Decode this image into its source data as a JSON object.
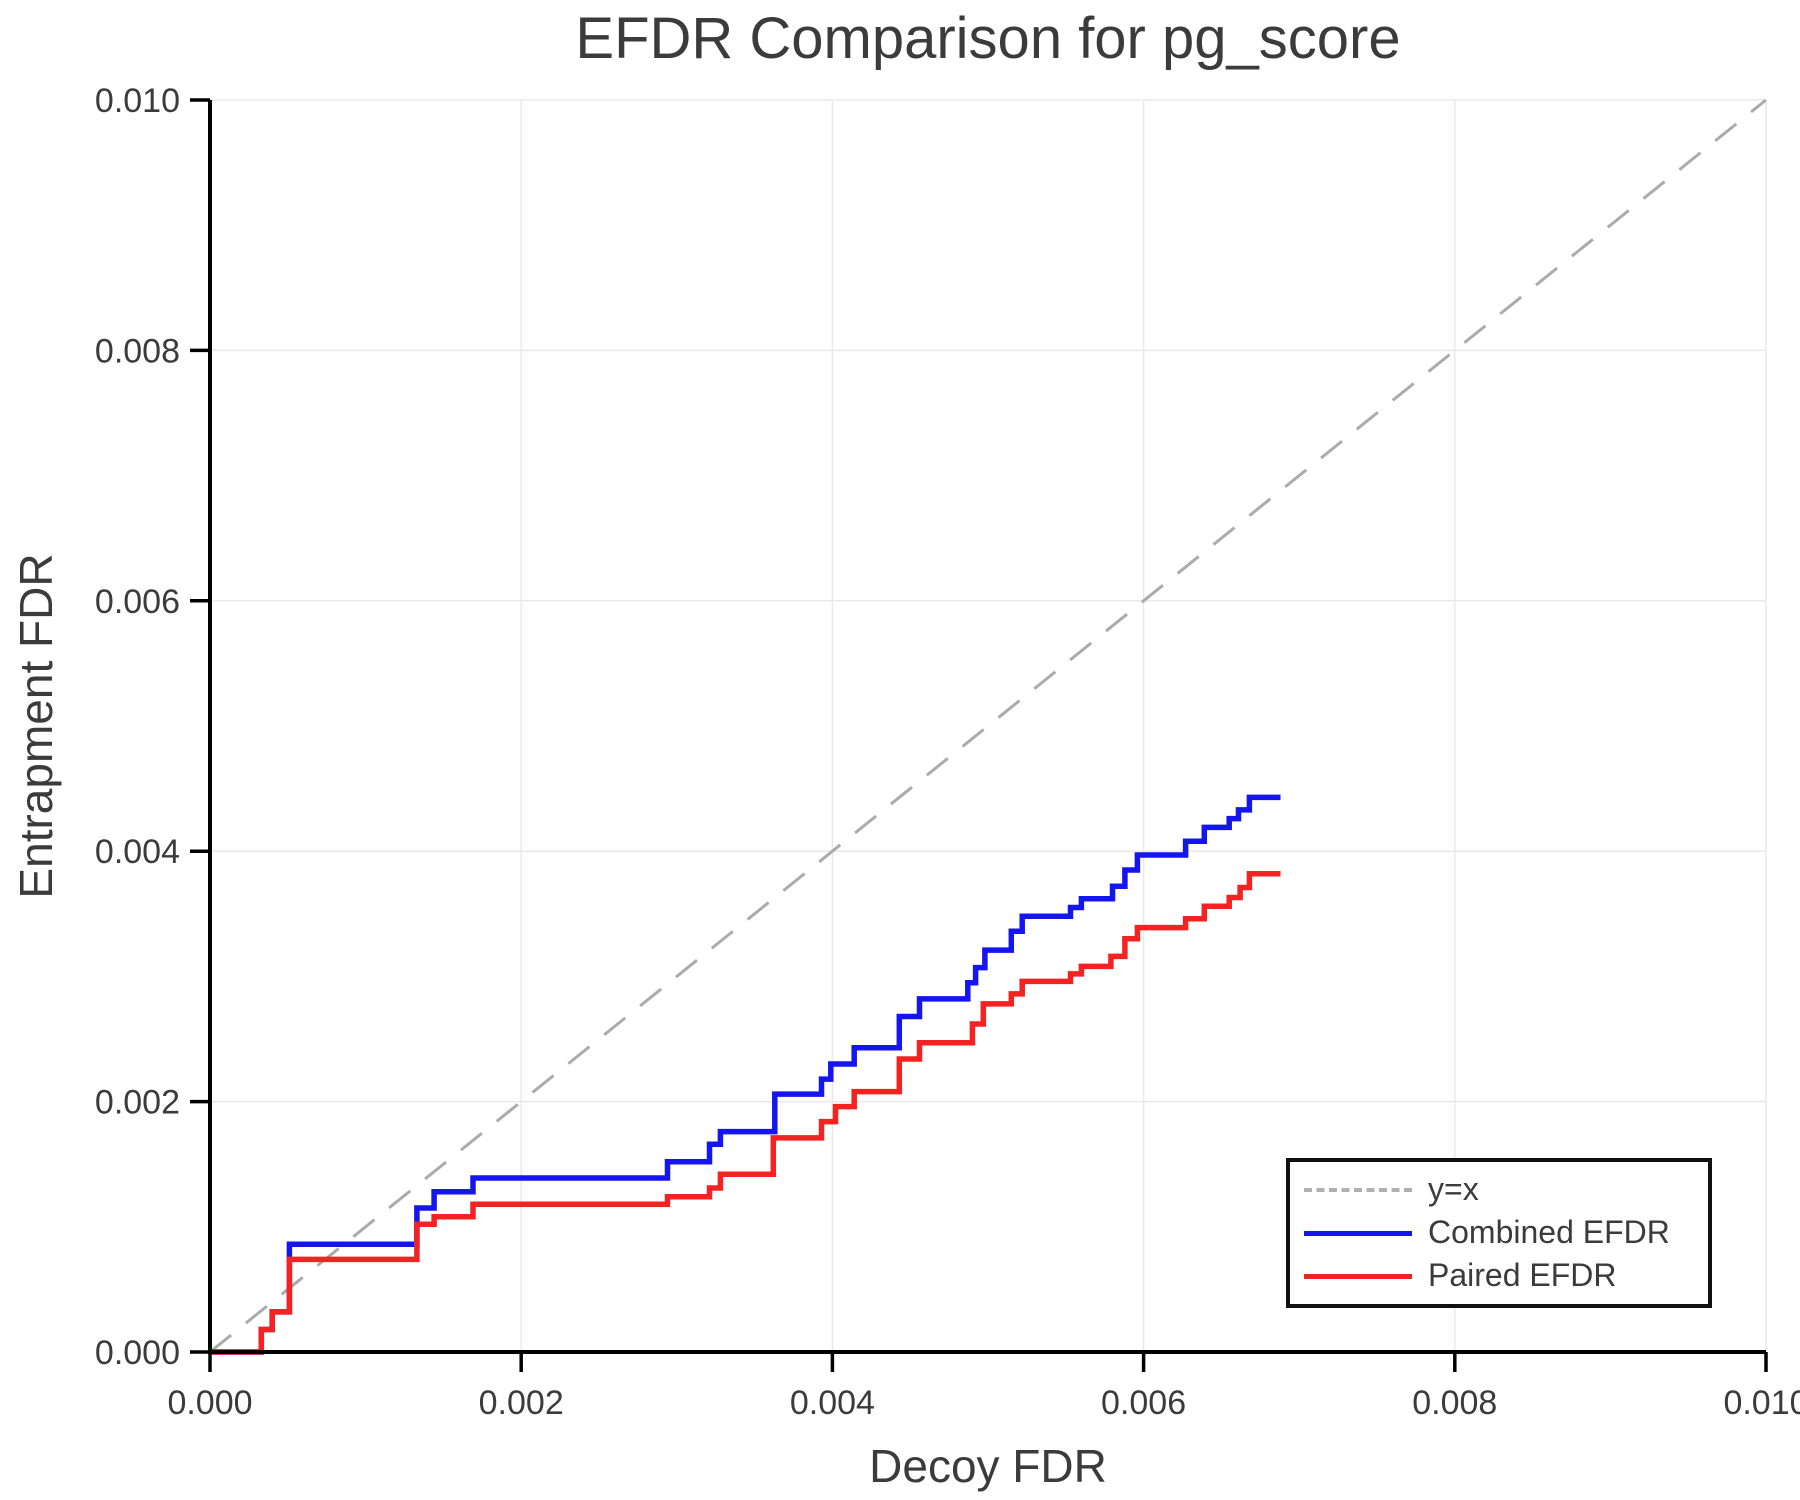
{
  "title": "EFDR Comparison for pg_score",
  "axes": {
    "x": {
      "label": "Decoy FDR",
      "ticks": [
        0.0,
        0.002,
        0.004,
        0.006,
        0.008,
        0.01
      ],
      "tick_labels": [
        "0.000",
        "0.002",
        "0.004",
        "0.006",
        "0.008",
        "0.010"
      ]
    },
    "y": {
      "label": "Entrapment FDR",
      "ticks": [
        0.0,
        0.002,
        0.004,
        0.006,
        0.008,
        0.01
      ],
      "tick_labels": [
        "0.000",
        "0.002",
        "0.004",
        "0.006",
        "0.008",
        "0.010"
      ]
    }
  },
  "legend": {
    "items": [
      {
        "label": "y=x",
        "style": "dashed",
        "color": "#b0b0b0"
      },
      {
        "label": "Combined EFDR",
        "style": "solid",
        "color": "#1515f0"
      },
      {
        "label": "Paired EFDR",
        "style": "solid",
        "color": "#f52222"
      }
    ]
  },
  "style": {
    "grid_color": "#e9e9e9",
    "spine_color": "#000000",
    "text_color": "#3b3b3b",
    "identity_color": "#ababab",
    "combined_color": "#1515f0",
    "paired_color": "#f52222"
  },
  "chart_data": {
    "type": "line",
    "title": "EFDR Comparison for pg_score",
    "xlabel": "Decoy FDR",
    "ylabel": "Entrapment FDR",
    "xlim": [
      0.0,
      0.01
    ],
    "ylim": [
      0.0,
      0.01
    ],
    "grid": true,
    "legend_position": "lower right",
    "reference_line": {
      "name": "y=x",
      "type": "identity",
      "from": [
        0.0,
        0.0
      ],
      "to": [
        0.01,
        0.01
      ],
      "dashed": true
    },
    "step_mode": "post",
    "series": [
      {
        "name": "Combined EFDR",
        "color": "#1515f0",
        "x_end": 0.00688,
        "points": [
          [
            0.0,
            0.0
          ],
          [
            0.00033,
            0.00018
          ],
          [
            0.0004,
            0.00032
          ],
          [
            0.00051,
            0.00086
          ],
          [
            0.00133,
            0.00115
          ],
          [
            0.00144,
            0.00128
          ],
          [
            0.00169,
            0.00139
          ],
          [
            0.00294,
            0.00152
          ],
          [
            0.00321,
            0.00166
          ],
          [
            0.00328,
            0.00176
          ],
          [
            0.00363,
            0.00206
          ],
          [
            0.00393,
            0.00218
          ],
          [
            0.00399,
            0.0023
          ],
          [
            0.00414,
            0.00243
          ],
          [
            0.00443,
            0.00268
          ],
          [
            0.00456,
            0.00282
          ],
          [
            0.00487,
            0.00295
          ],
          [
            0.00492,
            0.00307
          ],
          [
            0.00498,
            0.00321
          ],
          [
            0.00515,
            0.00336
          ],
          [
            0.00522,
            0.00348
          ],
          [
            0.00553,
            0.00355
          ],
          [
            0.0056,
            0.00362
          ],
          [
            0.0058,
            0.00372
          ],
          [
            0.00588,
            0.00385
          ],
          [
            0.00596,
            0.00397
          ],
          [
            0.00627,
            0.00408
          ],
          [
            0.00639,
            0.00419
          ],
          [
            0.00655,
            0.00426
          ],
          [
            0.00661,
            0.00433
          ],
          [
            0.00668,
            0.00443
          ]
        ]
      },
      {
        "name": "Paired EFDR",
        "color": "#f52222",
        "x_end": 0.00688,
        "points": [
          [
            0.0,
            0.0
          ],
          [
            0.00033,
            0.00018
          ],
          [
            0.0004,
            0.00032
          ],
          [
            0.00051,
            0.00074
          ],
          [
            0.00133,
            0.00102
          ],
          [
            0.00144,
            0.00108
          ],
          [
            0.00169,
            0.00118
          ],
          [
            0.00294,
            0.00124
          ],
          [
            0.00321,
            0.00131
          ],
          [
            0.00328,
            0.00142
          ],
          [
            0.00362,
            0.00171
          ],
          [
            0.00393,
            0.00184
          ],
          [
            0.00402,
            0.00196
          ],
          [
            0.00414,
            0.00208
          ],
          [
            0.00443,
            0.00234
          ],
          [
            0.00456,
            0.00247
          ],
          [
            0.0049,
            0.00262
          ],
          [
            0.00497,
            0.00278
          ],
          [
            0.00515,
            0.00286
          ],
          [
            0.00522,
            0.00296
          ],
          [
            0.00553,
            0.00302
          ],
          [
            0.0056,
            0.00308
          ],
          [
            0.00579,
            0.00316
          ],
          [
            0.00588,
            0.0033
          ],
          [
            0.00596,
            0.00339
          ],
          [
            0.00627,
            0.00346
          ],
          [
            0.00639,
            0.00356
          ],
          [
            0.00655,
            0.00363
          ],
          [
            0.00662,
            0.00371
          ],
          [
            0.00668,
            0.00382
          ]
        ]
      }
    ]
  }
}
